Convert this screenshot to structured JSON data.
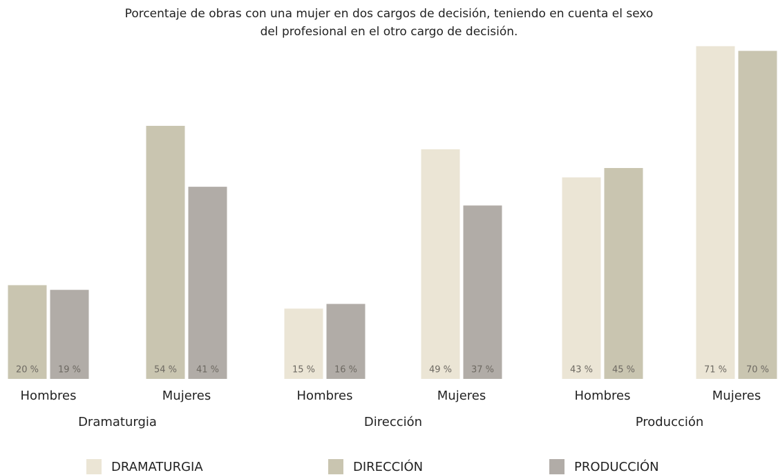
{
  "chart_data": {
    "type": "bar",
    "title": [
      "Porcentaje de obras con una mujer en dos cargos de decisión, teniendo en cuenta el sexo",
      "del profesional en el otro cargo de decisión."
    ],
    "groups": [
      "Dramaturgia",
      "Dirección",
      "Producción"
    ],
    "categories": [
      "Hombres",
      "Mujeres",
      "Hombres",
      "Mujeres",
      "Hombres",
      "Mujeres"
    ],
    "series": [
      {
        "name": "DRAMATURGIA",
        "color": "#ebe5d5",
        "values": [
          null,
          null,
          15,
          49,
          43,
          71
        ],
        "value_labels": [
          null,
          null,
          "15 %",
          "49 %",
          "43 %",
          "71 %"
        ]
      },
      {
        "name": "DIRECCIÓN",
        "color": "#c9c5b0",
        "values": [
          20,
          54,
          null,
          null,
          45,
          70
        ],
        "value_labels": [
          "20 %",
          "54 %",
          null,
          null,
          "45 %",
          "70 %"
        ]
      },
      {
        "name": "PRODUCCIÓN",
        "color": "#b1aca7",
        "values": [
          19,
          41,
          16,
          37,
          null,
          null
        ],
        "value_labels": [
          "19 %",
          "41 %",
          "16 %",
          "37 %",
          null,
          null
        ]
      }
    ],
    "ylim": [
      0,
      72
    ],
    "grid": false,
    "legend": "bottom"
  }
}
